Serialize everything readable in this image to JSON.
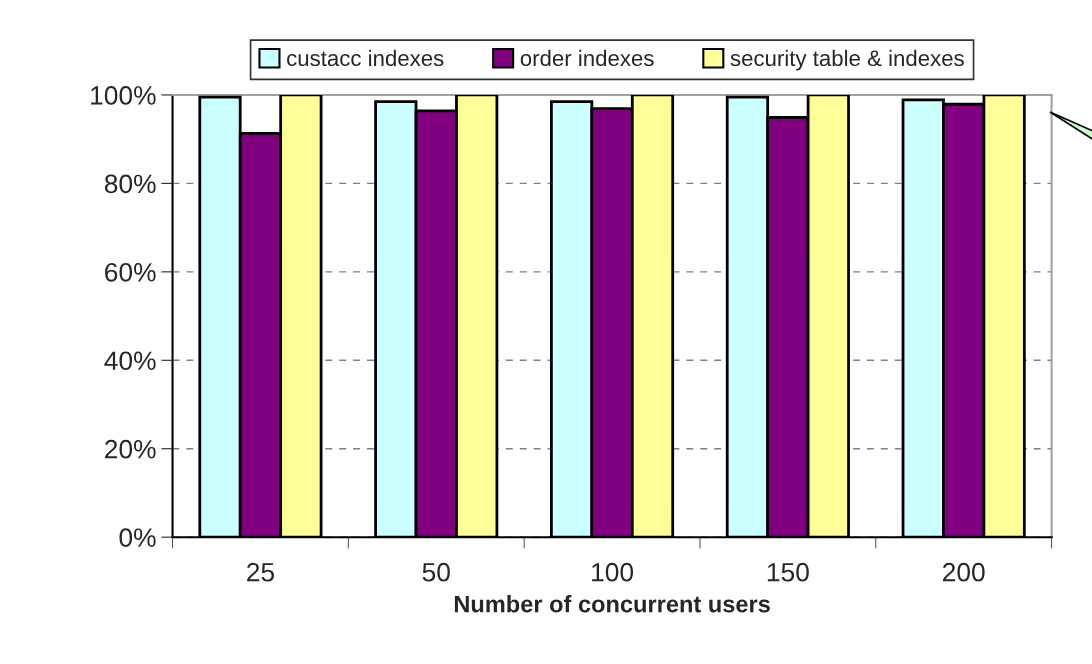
{
  "chart_data": {
    "type": "bar",
    "xlabel": "Number of concurrent users",
    "categories": [
      "25",
      "50",
      "100",
      "150",
      "200"
    ],
    "series": [
      {
        "name": "custacc indexes",
        "color": "#ccffff",
        "values": [
          99.5,
          98.5,
          98.5,
          99.5,
          98.9
        ]
      },
      {
        "name": "order indexes",
        "color": "#800080",
        "values": [
          91.3,
          96.4,
          96.9,
          94.9,
          97.9
        ]
      },
      {
        "name": "security table & indexes",
        "color": "#ffff99",
        "values": [
          100,
          100,
          100,
          100,
          100
        ]
      }
    ],
    "ylim": [
      0,
      100
    ],
    "yticks": [
      {
        "value": 0,
        "label": "0%"
      },
      {
        "value": 20,
        "label": "20%"
      },
      {
        "value": 40,
        "label": "40%"
      },
      {
        "value": 60,
        "label": "60%"
      },
      {
        "value": 80,
        "label": "80%"
      },
      {
        "value": 100,
        "label": "100%"
      }
    ],
    "grid": "y",
    "legend": "top"
  }
}
